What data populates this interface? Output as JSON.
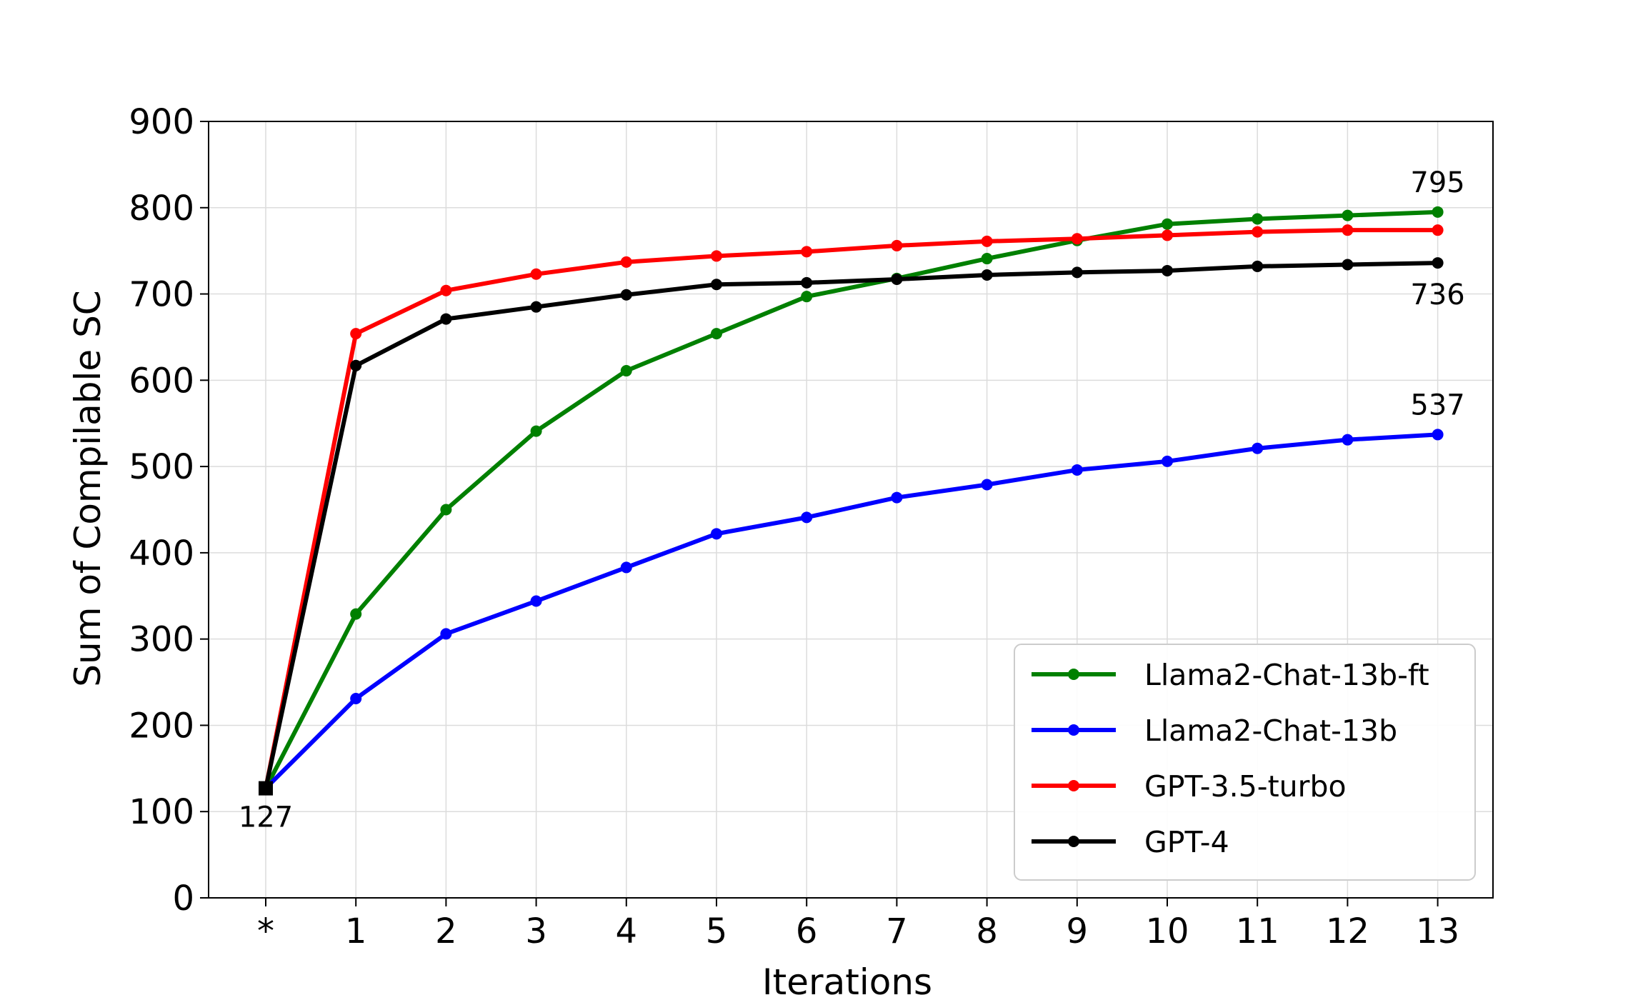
{
  "chart_data": {
    "type": "line",
    "xlabel": "Iterations",
    "ylabel": "Sum of Compilable SC",
    "x_categories": [
      "*",
      "1",
      "2",
      "3",
      "4",
      "5",
      "6",
      "7",
      "8",
      "9",
      "10",
      "11",
      "12",
      "13"
    ],
    "ylim": [
      0,
      900
    ],
    "yticks": [
      0,
      100,
      200,
      300,
      400,
      500,
      600,
      700,
      800,
      900
    ],
    "grid": true,
    "legend_position": "lower-right",
    "series": [
      {
        "name": "Llama2-Chat-13b-ft",
        "color": "#008000",
        "values": [
          127,
          329,
          450,
          541,
          611,
          654,
          697,
          718,
          741,
          762,
          781,
          787,
          791,
          795
        ]
      },
      {
        "name": "Llama2-Chat-13b",
        "color": "#0000ff",
        "values": [
          127,
          231,
          306,
          344,
          383,
          422,
          441,
          464,
          479,
          496,
          506,
          521,
          531,
          537
        ]
      },
      {
        "name": "GPT-3.5-turbo",
        "color": "#ff0000",
        "values": [
          127,
          654,
          704,
          723,
          737,
          744,
          749,
          756,
          761,
          764,
          768,
          772,
          774,
          774
        ]
      },
      {
        "name": "GPT-4",
        "color": "#000000",
        "values": [
          127,
          617,
          671,
          685,
          699,
          711,
          713,
          717,
          722,
          725,
          727,
          732,
          734,
          736
        ]
      }
    ],
    "annotations": [
      {
        "text": "127",
        "x": "*",
        "y": 127
      },
      {
        "text": "795",
        "x": "13",
        "y": 795
      },
      {
        "text": "736",
        "x": "13",
        "y": 736
      },
      {
        "text": "537",
        "x": "13",
        "y": 537
      }
    ]
  }
}
